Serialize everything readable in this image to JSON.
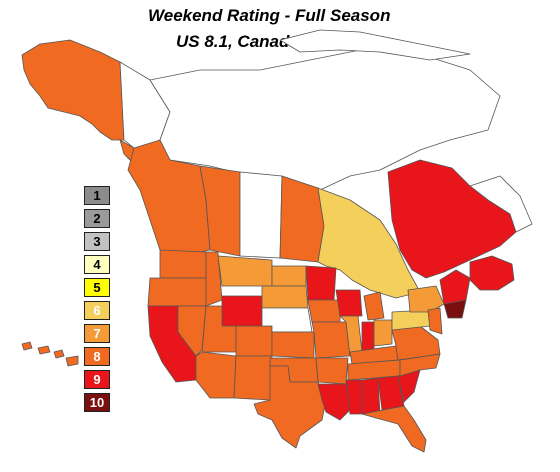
{
  "header": {
    "title": "Weekend Rating - Full Season",
    "subtitle": "US 8.1, Canada 8.2"
  },
  "legend": {
    "items": [
      {
        "label": "1",
        "color": "#8c8c8c",
        "text_color": "#000000"
      },
      {
        "label": "2",
        "color": "#9a9a9a",
        "text_color": "#000000"
      },
      {
        "label": "3",
        "color": "#c2c2c2",
        "text_color": "#000000"
      },
      {
        "label": "4",
        "color": "#ffffc0",
        "text_color": "#000000"
      },
      {
        "label": "5",
        "color": "#ffff00",
        "text_color": "#000000"
      },
      {
        "label": "6",
        "color": "#f5cf5b",
        "text_color": "#ffffff"
      },
      {
        "label": "7",
        "color": "#f49a36",
        "text_color": "#ffffff"
      },
      {
        "label": "8",
        "color": "#f06a21",
        "text_color": "#ffffff"
      },
      {
        "label": "9",
        "color": "#e8151a",
        "text_color": "#ffffff"
      },
      {
        "label": "10",
        "color": "#7a0f0f",
        "text_color": "#ffffff"
      }
    ]
  },
  "map_colors": {
    "rating_6": "#f5cf5b",
    "rating_7": "#f49a36",
    "rating_8": "#f06a21",
    "rating_9": "#e8151a",
    "rating_10": "#7a0f0f",
    "no_data": "#ffffff",
    "border": "#555555"
  }
}
